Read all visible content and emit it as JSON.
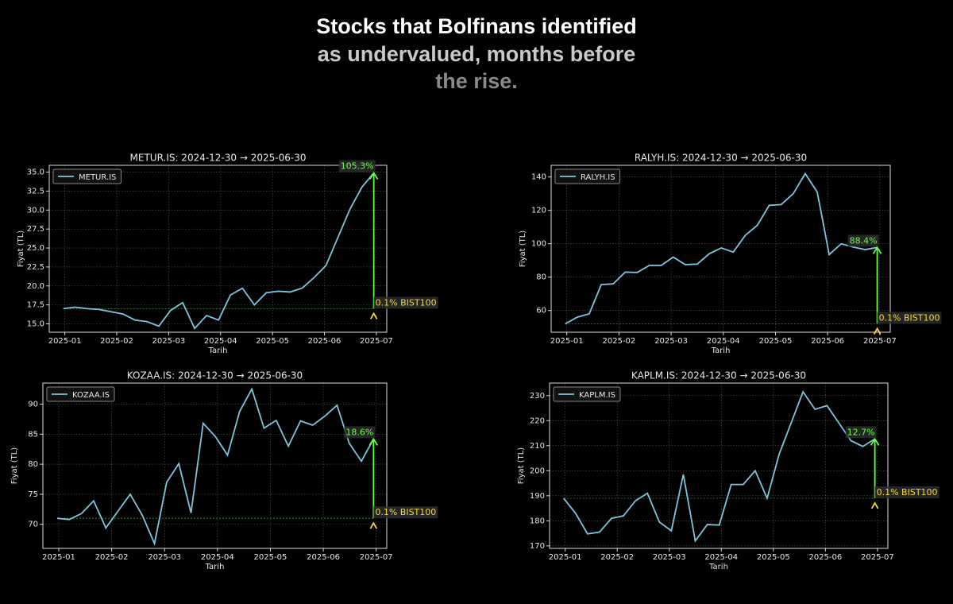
{
  "header": {
    "lines": [
      "Stocks that Bolfinans identified",
      "as undervalued, months before",
      "the rise."
    ]
  },
  "chart_data": [
    {
      "type": "line",
      "title": "METUR.IS: 2024-12-30 → 2025-06-30",
      "xlabel": "Tarih",
      "ylabel": "Fiyat (TL)",
      "x": [
        0.97,
        1.2,
        1.43,
        1.66,
        1.89,
        2.12,
        2.35,
        2.58,
        2.81,
        3.04,
        3.27,
        3.5,
        3.73,
        3.96,
        4.19,
        4.42,
        4.65,
        4.88,
        5.11,
        5.34,
        5.57,
        5.8,
        6.03,
        6.26,
        6.49,
        6.72,
        6.95
      ],
      "series": [
        {
          "name": "METUR.IS",
          "color": "#7cc6de",
          "values": [
            17.0,
            17.2,
            17.0,
            16.9,
            16.6,
            16.3,
            15.5,
            15.3,
            14.7,
            16.8,
            17.8,
            14.4,
            16.1,
            15.5,
            18.8,
            19.7,
            17.5,
            19.1,
            19.3,
            19.2,
            19.7,
            21.1,
            22.7,
            26.4,
            30.1,
            33.0,
            34.9
          ]
        }
      ],
      "xlim": [
        0.7,
        7.2
      ],
      "xticks": [
        {
          "value": 1,
          "label": "2025-01"
        },
        {
          "value": 2,
          "label": "2025-02"
        },
        {
          "value": 3,
          "label": "2025-03"
        },
        {
          "value": 4,
          "label": "2025-04"
        },
        {
          "value": 5,
          "label": "2025-05"
        },
        {
          "value": 6,
          "label": "2025-06"
        },
        {
          "value": 7,
          "label": "2025-07"
        }
      ],
      "ylim": [
        13.9,
        35.9
      ],
      "yticks": [
        {
          "value": 15,
          "label": "15.0"
        },
        17.5,
        {
          "value": 20,
          "label": "20.0"
        },
        22.5,
        {
          "value": 25,
          "label": "25.0"
        },
        27.5,
        {
          "value": 30,
          "label": "30.0"
        },
        32.5,
        {
          "value": 35,
          "label": "35.0"
        }
      ],
      "annotations": [
        "105.3%",
        "0.1% BIST100"
      ],
      "grid": true,
      "legend": "upper left"
    },
    {
      "type": "line",
      "title": "RALYH.IS: 2024-12-30 → 2025-06-30",
      "xlabel": "Tarih",
      "ylabel": "Fiyat (TL)",
      "x": [
        0.97,
        1.2,
        1.43,
        1.66,
        1.89,
        2.12,
        2.35,
        2.58,
        2.81,
        3.04,
        3.27,
        3.5,
        3.73,
        3.96,
        4.19,
        4.42,
        4.65,
        4.88,
        5.11,
        5.34,
        5.57,
        5.8,
        6.03,
        6.26,
        6.49,
        6.72,
        6.95
      ],
      "series": [
        {
          "name": "RALYH.IS",
          "color": "#7cc6de",
          "values": [
            52,
            56,
            58,
            75.5,
            76,
            83,
            82.8,
            87,
            87,
            92,
            87.5,
            87.8,
            94,
            97.5,
            95,
            105,
            111,
            123,
            123.5,
            130,
            142,
            131,
            93.5,
            100,
            98,
            96.5,
            97.8
          ]
        }
      ],
      "xlim": [
        0.7,
        7.2
      ],
      "xticks": [
        {
          "value": 1,
          "label": "2025-01"
        },
        {
          "value": 2,
          "label": "2025-02"
        },
        {
          "value": 3,
          "label": "2025-03"
        },
        {
          "value": 4,
          "label": "2025-04"
        },
        {
          "value": 5,
          "label": "2025-05"
        },
        {
          "value": 6,
          "label": "2025-06"
        },
        {
          "value": 7,
          "label": "2025-07"
        }
      ],
      "ylim": [
        47,
        147
      ],
      "yticks": [
        60,
        80,
        100,
        120,
        140
      ],
      "annotations": [
        "88.4%",
        "0.1% BIST100"
      ],
      "grid": true,
      "legend": "upper left"
    },
    {
      "type": "line",
      "title": "KOZAA.IS: 2024-12-30 → 2025-06-30",
      "xlabel": "Tarih",
      "ylabel": "Fiyat (TL)",
      "x": [
        0.97,
        1.2,
        1.43,
        1.66,
        1.89,
        2.12,
        2.35,
        2.58,
        2.81,
        3.04,
        3.27,
        3.5,
        3.73,
        3.96,
        4.19,
        4.42,
        4.65,
        4.88,
        5.11,
        5.34,
        5.57,
        5.8,
        6.03,
        6.26,
        6.49,
        6.72,
        6.95
      ],
      "series": [
        {
          "name": "KOZAA.IS",
          "color": "#7cc6de",
          "values": [
            71,
            70.8,
            71.8,
            73.9,
            69.4,
            72.2,
            75,
            71.5,
            66.8,
            77,
            80.1,
            71.9,
            86.8,
            84.6,
            81.5,
            88.8,
            92.5,
            86,
            87.3,
            83,
            87.2,
            86.5,
            88,
            89.8,
            83.5,
            80.5,
            84.2
          ]
        }
      ],
      "xlim": [
        0.7,
        7.2
      ],
      "xticks": [
        {
          "value": 1,
          "label": "2025-01"
        },
        {
          "value": 2,
          "label": "2025-02"
        },
        {
          "value": 3,
          "label": "2025-03"
        },
        {
          "value": 4,
          "label": "2025-04"
        },
        {
          "value": 5,
          "label": "2025-05"
        },
        {
          "value": 6,
          "label": "2025-06"
        },
        {
          "value": 7,
          "label": "2025-07"
        }
      ],
      "ylim": [
        66,
        93.5
      ],
      "yticks": [
        70,
        75,
        80,
        85,
        90
      ],
      "annotations": [
        "18.6%",
        "0.1% BIST100"
      ],
      "grid": true,
      "legend": "upper left"
    },
    {
      "type": "line",
      "title": "KAPLM.IS: 2024-12-30 → 2025-06-30",
      "xlabel": "Tarih",
      "ylabel": "Fiyat (TL)",
      "x": [
        0.97,
        1.2,
        1.43,
        1.66,
        1.89,
        2.12,
        2.35,
        2.58,
        2.81,
        3.04,
        3.27,
        3.5,
        3.73,
        3.96,
        4.19,
        4.42,
        4.65,
        4.88,
        5.11,
        5.34,
        5.57,
        5.8,
        6.03,
        6.26,
        6.49,
        6.72,
        6.95
      ],
      "series": [
        {
          "name": "KAPLM.IS",
          "color": "#7cc6de",
          "values": [
            189,
            183,
            174.8,
            175.5,
            181,
            182,
            188,
            191,
            179.5,
            176,
            198.5,
            172,
            178.5,
            178.3,
            194.5,
            194.5,
            200,
            189,
            206.5,
            219,
            231.5,
            224.5,
            226,
            219,
            212,
            209.7,
            212.7
          ]
        }
      ],
      "xlim": [
        0.7,
        7.2
      ],
      "xticks": [
        {
          "value": 1,
          "label": "2025-01"
        },
        {
          "value": 2,
          "label": "2025-02"
        },
        {
          "value": 3,
          "label": "2025-03"
        },
        {
          "value": 4,
          "label": "2025-04"
        },
        {
          "value": 5,
          "label": "2025-05"
        },
        {
          "value": 6,
          "label": "2025-06"
        },
        {
          "value": 7,
          "label": "2025-07"
        }
      ],
      "ylim": [
        169,
        235
      ],
      "yticks": [
        170,
        180,
        190,
        200,
        210,
        220,
        230
      ],
      "annotations": [
        "12.7%",
        "0.1% BIST100"
      ],
      "grid": true,
      "legend": "upper left"
    }
  ]
}
